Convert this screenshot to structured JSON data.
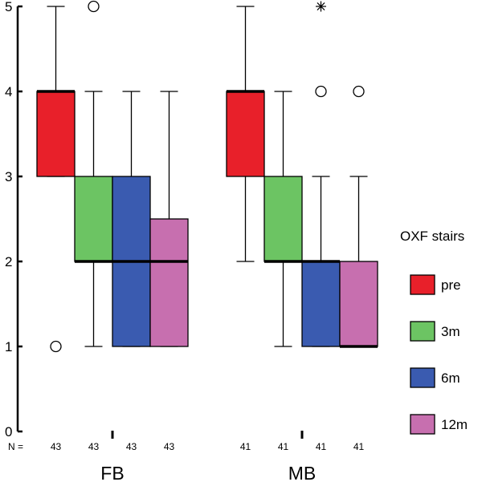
{
  "chart_data": {
    "type": "boxplot",
    "title": "",
    "xlabel": "",
    "ylabel": "",
    "ylim": [
      0,
      5
    ],
    "yticks": [
      "0",
      "1",
      "2",
      "3",
      "4",
      "5"
    ],
    "grid": false,
    "legend_position": "right",
    "legend": {
      "title": "OXF stairs",
      "entries": [
        {
          "label": "pre",
          "color": "#e8202a"
        },
        {
          "label": "3m",
          "color": "#6cc463"
        },
        {
          "label": "6m",
          "color": "#3a5bb0"
        },
        {
          "label": "12m",
          "color": "#c76faf"
        }
      ]
    },
    "n_prefix": "N =",
    "groups": [
      {
        "name": "FB",
        "boxes": [
          {
            "series": "pre",
            "n": "43",
            "q1": 3,
            "median": 4,
            "q3": 4,
            "whisker_low": 3,
            "whisker_high": 5,
            "outliers": [
              1
            ],
            "extremes": []
          },
          {
            "series": "3m",
            "n": "43",
            "q1": 2,
            "median": 2,
            "q3": 3,
            "whisker_low": 1,
            "whisker_high": 4,
            "outliers": [
              5
            ],
            "extremes": []
          },
          {
            "series": "6m",
            "n": "43",
            "q1": 1,
            "median": 2,
            "q3": 3,
            "whisker_low": 1,
            "whisker_high": 4,
            "outliers": [],
            "extremes": []
          },
          {
            "series": "12m",
            "n": "43",
            "q1": 1,
            "median": 2,
            "q3": 2.5,
            "whisker_low": 1,
            "whisker_high": 4,
            "outliers": [],
            "extremes": []
          }
        ]
      },
      {
        "name": "MB",
        "boxes": [
          {
            "series": "pre",
            "n": "41",
            "q1": 3,
            "median": 4,
            "q3": 4,
            "whisker_low": 2,
            "whisker_high": 5,
            "outliers": [],
            "extremes": []
          },
          {
            "series": "3m",
            "n": "41",
            "q1": 2,
            "median": 2,
            "q3": 3,
            "whisker_low": 1,
            "whisker_high": 4,
            "outliers": [],
            "extremes": []
          },
          {
            "series": "6m",
            "n": "41",
            "q1": 1,
            "median": 2,
            "q3": 2,
            "whisker_low": 1,
            "whisker_high": 3,
            "outliers": [
              4
            ],
            "extremes": [
              5
            ]
          },
          {
            "series": "12m",
            "n": "41",
            "q1": 1,
            "median": 1,
            "q3": 2,
            "whisker_low": 1,
            "whisker_high": 3,
            "outliers": [
              4
            ],
            "extremes": []
          }
        ]
      }
    ]
  }
}
